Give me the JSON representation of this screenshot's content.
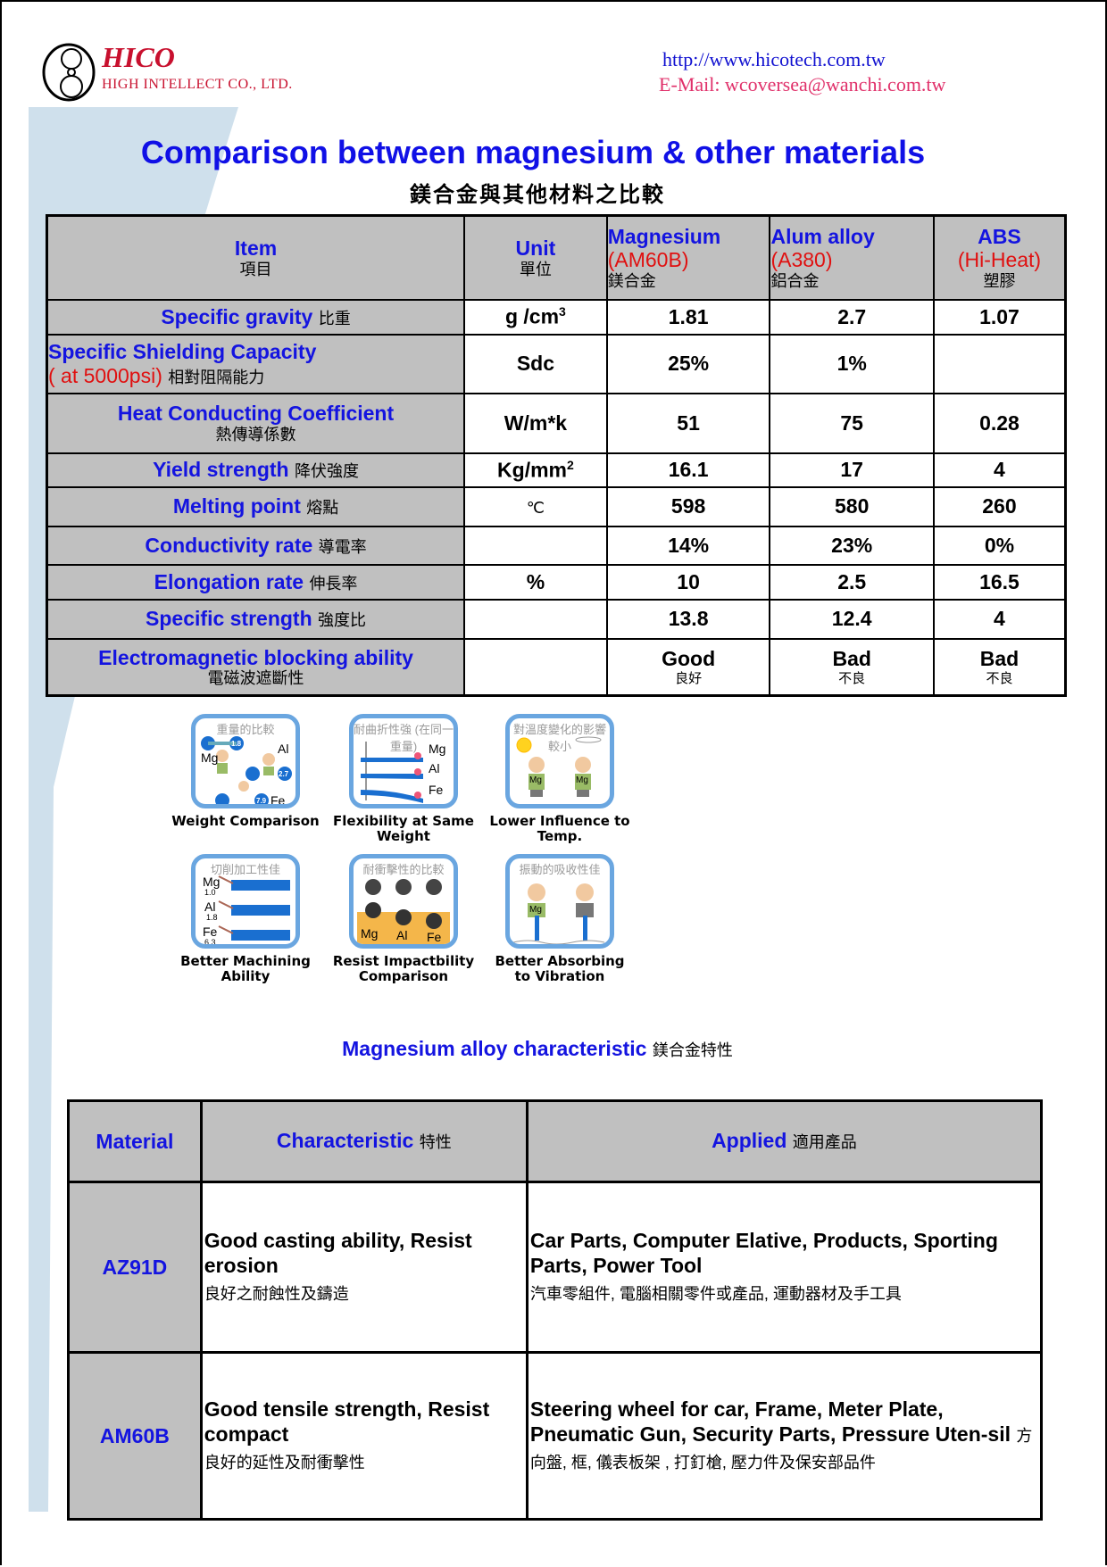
{
  "header": {
    "brand": "HICO",
    "company": "HIGH INTELLECT CO., LTD.",
    "url": "http://www.hicotech.com.tw",
    "email": "E-Mail: wcoversea@wanchi.com.tw"
  },
  "title": "Comparison between magnesium & other materials",
  "subtitle_zh": "鎂合金與其他材料之比較",
  "comparison_table": {
    "headers": {
      "item": {
        "en": "Item",
        "zh": "項目"
      },
      "unit": {
        "en": "Unit",
        "zh": "單位"
      },
      "mg": {
        "en": "Magnesium",
        "grade": "(AM60B)",
        "zh": "鎂合金"
      },
      "al": {
        "en": "Alum alloy",
        "grade": "(A380)",
        "zh": "鋁合金"
      },
      "abs": {
        "en": "ABS",
        "grade": "(Hi-Heat)",
        "zh": "塑膠"
      }
    },
    "rows": [
      {
        "item": "Specific gravity",
        "note": "",
        "zh": "比重",
        "unit": "g /cm",
        "unit_sup": "3",
        "mg": "1.81",
        "al": "2.7",
        "abs": "1.07"
      },
      {
        "item": "Specific Shielding Capacity",
        "note": "( at 5000psi)",
        "zh": "相對阻隔能力",
        "unit": "Sdc",
        "unit_sup": "",
        "mg": "25%",
        "al": "1%",
        "abs": ""
      },
      {
        "item": "Heat Conducting Coefficient",
        "note": "",
        "zh": "熱傳導係數",
        "unit": "W/m*k",
        "unit_sup": "",
        "mg": "51",
        "al": "75",
        "abs": "0.28"
      },
      {
        "item": "Yield strength",
        "note": "",
        "zh": "降伏強度",
        "unit": "Kg/mm",
        "unit_sup": "2",
        "mg": "16.1",
        "al": "17",
        "abs": "4"
      },
      {
        "item": "Melting point",
        "note": "",
        "zh": "熔點",
        "unit": "℃",
        "unit_sup": "",
        "mg": "598",
        "al": "580",
        "abs": "260"
      },
      {
        "item": "Conductivity rate",
        "note": "",
        "zh": "導電率",
        "unit": "",
        "unit_sup": "",
        "mg": "14%",
        "al": "23%",
        "abs": "0%"
      },
      {
        "item": "Elongation rate",
        "note": "",
        "zh": "伸長率",
        "unit": "%",
        "unit_sup": "",
        "mg": "10",
        "al": "2.5",
        "abs": "16.5"
      },
      {
        "item": "Specific strength",
        "note": "",
        "zh": "強度比",
        "unit": "",
        "unit_sup": "",
        "mg": "13.8",
        "al": "12.4",
        "abs": "4"
      },
      {
        "item": "Electromagnetic blocking ability",
        "note": "",
        "zh": "電磁波遮斷性",
        "unit": "",
        "unit_sup": "",
        "mg": "Good",
        "mg_zh": "良好",
        "al": "Bad",
        "al_zh": "不良",
        "abs": "Bad",
        "abs_zh": "不良"
      }
    ]
  },
  "figures": [
    {
      "title_zh": "重量的比較",
      "caption": "Weight Comparison",
      "labels": [
        "Mg",
        "Al",
        "Fe"
      ],
      "values": [
        "1.8",
        "2.7",
        "7.9"
      ]
    },
    {
      "title_zh": "耐曲折性強 (在同一重量)",
      "caption": "Flexibility at Same Weight",
      "labels": [
        "Mg",
        "Al",
        "Fe"
      ]
    },
    {
      "title_zh": "對溫度變化的影響較小",
      "caption": "Lower Influence to Temp.",
      "labels": [
        "Mg",
        "Mg"
      ]
    },
    {
      "title_zh": "切削加工性佳",
      "caption": "Better Machining Ability",
      "labels": [
        "Mg",
        "Al",
        "Fe"
      ],
      "values": [
        "1.0",
        "1.8",
        "6.3"
      ]
    },
    {
      "title_zh": "耐衝擊性的比較",
      "caption": "Resist Impactbility Comparison",
      "labels": [
        "Mg",
        "Al",
        "Fe"
      ]
    },
    {
      "title_zh": "振動的吸收性佳",
      "caption": "Better Absorbing to Vibration",
      "labels": [
        "Mg"
      ]
    }
  ],
  "characteristic_section": {
    "title": "Magnesium alloy characteristic",
    "title_zh": "鎂合金特性",
    "headers": {
      "material": "Material",
      "characteristic": "Characteristic",
      "characteristic_zh": "特性",
      "applied": "Applied",
      "applied_zh": "適用產品"
    },
    "rows": [
      {
        "material": "AZ91D",
        "characteristic": "Good casting ability, Resist erosion",
        "characteristic_zh": "良好之耐蝕性及鑄造",
        "applied": "Car Parts, Computer Elative, Products, Sporting Parts, Power Tool",
        "applied_zh": "汽車零組件, 電腦相關零件或產品, 運動器材及手工具"
      },
      {
        "material": "AM60B",
        "characteristic": "Good tensile strength, Resist compact",
        "characteristic_zh": "良好的延性及耐衝擊性",
        "applied": "Steering wheel for car,  Frame, Meter Plate, Pneumatic Gun, Security Parts, Pressure Uten-sil",
        "applied_zh": "方向盤, 框, 儀表板架 , 打釘槍, 壓力件及保安部品件"
      }
    ]
  },
  "colors": {
    "title_blue": "#1414e0",
    "brand_red": "#c8102e",
    "header_gray": "#c0c0c0",
    "band": "#cfe0ec",
    "card_border": "#6aa6e0"
  }
}
